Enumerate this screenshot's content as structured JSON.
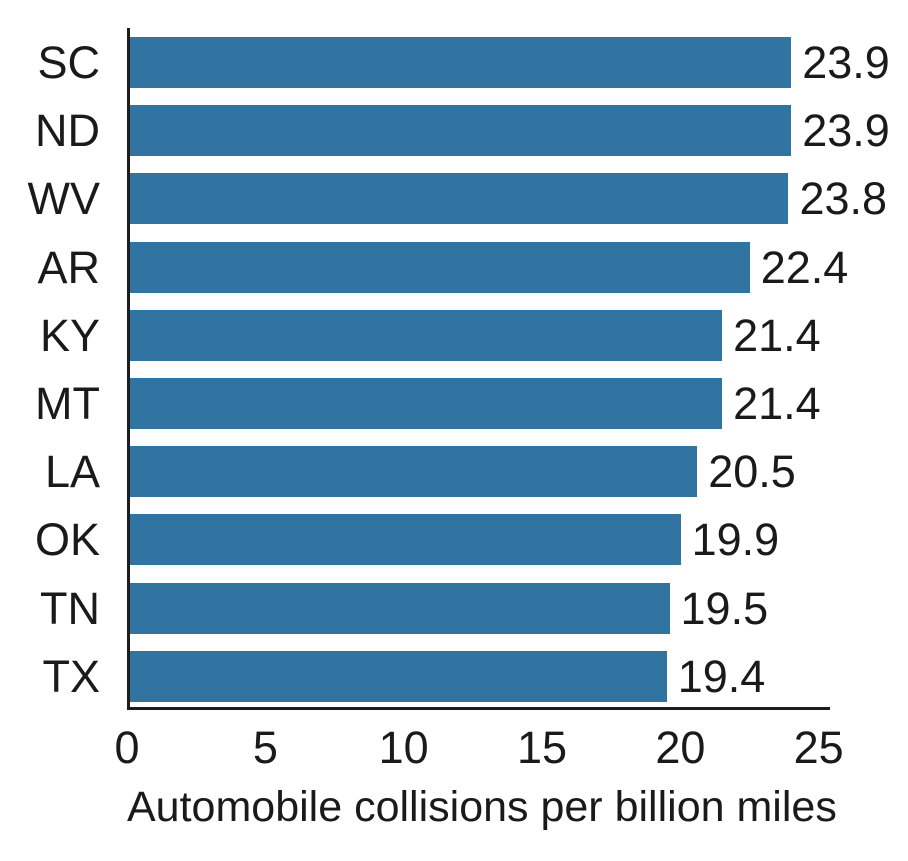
{
  "chart_data": {
    "type": "bar",
    "orientation": "horizontal",
    "title": "",
    "xlabel": "Automobile collisions per billion miles",
    "ylabel": "",
    "categories": [
      "SC",
      "ND",
      "WV",
      "AR",
      "KY",
      "MT",
      "LA",
      "OK",
      "TN",
      "TX"
    ],
    "values": [
      23.9,
      23.9,
      23.8,
      22.4,
      21.4,
      21.4,
      20.5,
      19.9,
      19.5,
      19.4
    ],
    "value_labels": [
      "23.9",
      "23.9",
      "23.8",
      "22.4",
      "21.4",
      "21.4",
      "20.5",
      "19.9",
      "19.5",
      "19.4"
    ],
    "xticks": [
      0,
      5,
      10,
      15,
      20,
      25
    ],
    "xtick_labels": [
      "0",
      "5",
      "10",
      "15",
      "20",
      "25"
    ],
    "xlim": [
      0,
      25.3
    ],
    "grid": false,
    "legend": null,
    "bar_color": "#3174A1",
    "text_color": "#1a1a1a",
    "axis_color": "#1c1c1c",
    "background_color": "#ffffff"
  }
}
